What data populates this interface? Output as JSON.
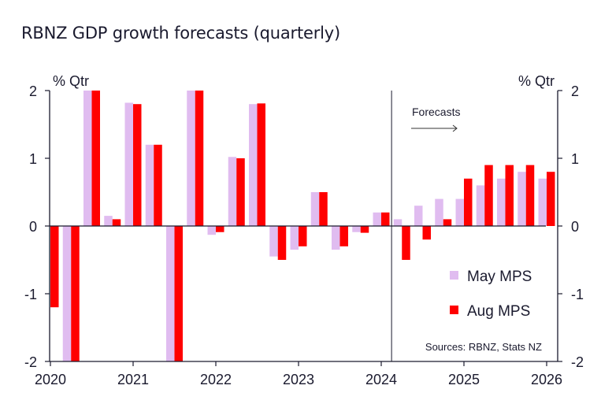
{
  "chart_data": {
    "type": "bar",
    "title": "RBNZ GDP growth forecasts (quarterly)",
    "ylabel_left": "% Qtr",
    "ylabel_right": "% Qtr",
    "ylim": [
      -2,
      2
    ],
    "yticks": [
      2,
      1,
      0,
      -1,
      -2
    ],
    "ytick_labels": [
      "2",
      "1",
      "0",
      "-1",
      "-2"
    ],
    "xtick_labels": [
      "2020",
      "2021",
      "2022",
      "2023",
      "2024",
      "2025",
      "2026"
    ],
    "categories": [
      "2020Q1",
      "2020Q2",
      "2020Q3",
      "2020Q4",
      "2021Q1",
      "2021Q2",
      "2021Q3",
      "2021Q4",
      "2022Q1",
      "2022Q2",
      "2022Q3",
      "2022Q4",
      "2023Q1",
      "2023Q2",
      "2023Q3",
      "2023Q4",
      "2024Q1",
      "2024Q2",
      "2024Q3",
      "2024Q4",
      "2025Q1",
      "2025Q2",
      "2025Q3",
      "2025Q4",
      "2026Q1"
    ],
    "series": [
      {
        "name": "May MPS",
        "color": "#e0bcf0",
        "values": [
          null,
          -2,
          2,
          0.15,
          1.82,
          1.2,
          -2,
          2,
          -0.13,
          1.02,
          1.8,
          -0.45,
          -0.35,
          0.5,
          -0.35,
          -0.09,
          0.2,
          0.1,
          0.3,
          0.4,
          0.4,
          0.6,
          0.7,
          0.8,
          0.7
        ]
      },
      {
        "name": "Aug MPS",
        "color": "#ff0000",
        "values": [
          -1.2,
          -2,
          2,
          0.1,
          1.8,
          1.2,
          -2,
          2,
          -0.09,
          1.0,
          1.81,
          -0.5,
          -0.3,
          0.5,
          -0.3,
          -0.1,
          0.2,
          -0.5,
          -0.2,
          0.1,
          0.7,
          0.9,
          0.9,
          0.9,
          0.8
        ]
      }
    ],
    "forecast_start_after": "2024Q1",
    "annotations": [
      "Forecasts"
    ],
    "source": "Sources: RBNZ, Stats NZ",
    "legend_position": "bottom-right",
    "grid": false
  }
}
